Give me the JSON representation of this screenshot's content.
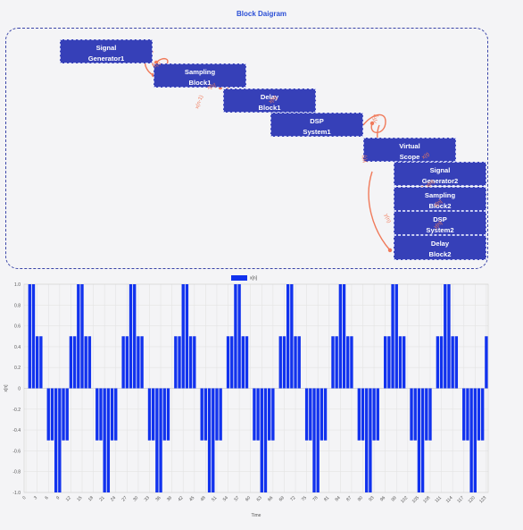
{
  "diagram": {
    "title": "Block Daigram",
    "blocks": [
      {
        "id": "sig1",
        "line1": "Signal",
        "line2": "Generator1"
      },
      {
        "id": "samp1",
        "line1": "Sampling",
        "line2": "Block1"
      },
      {
        "id": "delay1",
        "line1": "Delay",
        "line2": "Block1"
      },
      {
        "id": "dsp1",
        "line1": "DSP",
        "line2": "System1"
      },
      {
        "id": "vs",
        "line1": "Virtual",
        "line2": "Scope"
      },
      {
        "id": "sig2",
        "line1": "Signal",
        "line2": "Generator2"
      },
      {
        "id": "samp2",
        "line1": "Sampling",
        "line2": "Block2"
      },
      {
        "id": "dsp2",
        "line1": "DSP",
        "line2": "System2"
      },
      {
        "id": "delay2",
        "line1": "Delay",
        "line2": "Block2"
      }
    ],
    "edge_labels": [
      "x(t)",
      "x[n]",
      "x[n]",
      "x(n-1)",
      "y[n]",
      "y(t)",
      "x(t)",
      "x[n]",
      "x[n]",
      "y[n]",
      "y(n)"
    ],
    "colors": {
      "block": "#3640b8",
      "edge": "#f07a5a",
      "border": "#3a45a8",
      "title": "#2b4fd6"
    }
  },
  "chart_data": {
    "type": "bar",
    "legend": [
      "x[n]"
    ],
    "legend_position": "top",
    "xlabel": "Time",
    "ylabel": "x[n]",
    "ylim": [
      -1,
      1
    ],
    "yticks": [
      "1.0",
      "0.8",
      "0.6",
      "0.4",
      "0.2",
      "0",
      "-0.2",
      "-0.4",
      "-0.6",
      "-0.8",
      "-1.0"
    ],
    "grid": true,
    "color": "#1132ee",
    "x": [
      0,
      1,
      2,
      3,
      4,
      5,
      6,
      7,
      8,
      9,
      10,
      11,
      12,
      13,
      14,
      15,
      16,
      17,
      18,
      19,
      20,
      21,
      22,
      23,
      24,
      25,
      26,
      27,
      28,
      29,
      30,
      31,
      32,
      33,
      34,
      35,
      36,
      37,
      38,
      39,
      40,
      41,
      42,
      43,
      44,
      45,
      46,
      47,
      48,
      49,
      50,
      51,
      52,
      53,
      54,
      55,
      56,
      57,
      58,
      59,
      60,
      61,
      62,
      63,
      64,
      65,
      66,
      67,
      68,
      69,
      70,
      71,
      72,
      73,
      74,
      75,
      76,
      77,
      78,
      79,
      80,
      81,
      82,
      83,
      84,
      85,
      86,
      87,
      88,
      89,
      90,
      91,
      92,
      93,
      94,
      95,
      96,
      97,
      98,
      99,
      100,
      101,
      102,
      103,
      104,
      105,
      106,
      107,
      108,
      109,
      110,
      111,
      112,
      113,
      114,
      115,
      116,
      117,
      118,
      119,
      120,
      121,
      122,
      123
    ],
    "values": [
      0,
      1,
      1,
      0.5,
      0.5,
      0,
      -0.5,
      -0.5,
      -1,
      -1,
      -0.5,
      -0.5,
      0.5,
      0.5,
      1,
      1,
      0.5,
      0.5,
      0,
      -0.5,
      -0.5,
      -1,
      -1,
      -0.5,
      -0.5,
      0,
      0.5,
      0.5,
      1,
      1,
      0.5,
      0.5,
      0,
      -0.5,
      -0.5,
      -1,
      -1,
      -0.5,
      -0.5,
      0,
      0.5,
      0.5,
      1,
      1,
      0.5,
      0.5,
      0,
      -0.5,
      -0.5,
      -1,
      -1,
      -0.5,
      -0.5,
      0,
      0.5,
      0.5,
      1,
      1,
      0.5,
      0.5,
      0,
      -0.5,
      -0.5,
      -1,
      -1,
      -0.5,
      -0.5,
      0,
      0.5,
      0.5,
      1,
      1,
      0.5,
      0.5,
      0,
      -0.5,
      -0.5,
      -1,
      -1,
      -0.5,
      -0.5,
      0,
      0.5,
      0.5,
      1,
      1,
      0.5,
      0.5,
      0,
      -0.5,
      -0.5,
      -1,
      -1,
      -0.5,
      -0.5,
      0,
      0.5,
      0.5,
      1,
      1,
      0.5,
      0.5,
      0,
      -0.5,
      -0.5,
      -1,
      -1,
      -0.5,
      -0.5,
      0,
      0.5,
      0.5,
      1,
      1,
      0.5,
      0.5,
      0,
      -0.5,
      -0.5,
      -1,
      -1,
      -0.5,
      -0.5,
      0.5
    ],
    "xtick_labels": [
      "0",
      "3",
      "6",
      "9",
      "12",
      "15",
      "18",
      "21",
      "24",
      "27",
      "30",
      "33",
      "36",
      "39",
      "42",
      "45",
      "48",
      "51",
      "54",
      "57",
      "60",
      "63",
      "66",
      "69",
      "72",
      "75",
      "78",
      "81",
      "84",
      "87",
      "90",
      "93",
      "96",
      "99",
      "102",
      "105",
      "108",
      "111",
      "114",
      "117",
      "120",
      "123"
    ]
  }
}
